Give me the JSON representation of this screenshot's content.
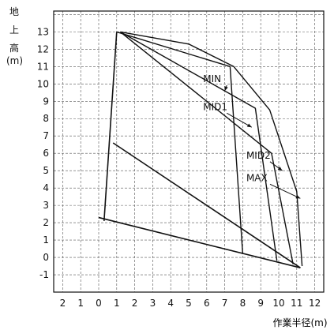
{
  "chart_data": {
    "type": "line",
    "title": "",
    "ylabel_chars": [
      "地",
      "上",
      "高",
      "(m)"
    ],
    "xlabel": "作業半径(m)",
    "x_ticks": [
      {
        "label": "2",
        "value": -2
      },
      {
        "label": "1",
        "value": -1
      },
      {
        "label": "0",
        "value": 0
      },
      {
        "label": "1",
        "value": 1
      },
      {
        "label": "2",
        "value": 2
      },
      {
        "label": "3",
        "value": 3
      },
      {
        "label": "4",
        "value": 4
      },
      {
        "label": "5",
        "value": 5
      },
      {
        "label": "6",
        "value": 6
      },
      {
        "label": "7",
        "value": 7
      },
      {
        "label": "8",
        "value": 8
      },
      {
        "label": "9",
        "value": 9
      },
      {
        "label": "10",
        "value": 10
      },
      {
        "label": "11",
        "value": 11
      },
      {
        "label": "12",
        "value": 12
      }
    ],
    "y_ticks": [
      13,
      12,
      11,
      10,
      9,
      8,
      7,
      6,
      5,
      4,
      3,
      2,
      1,
      0,
      -1
    ],
    "xlim": [
      -2.5,
      12.5
    ],
    "ylim": [
      -2,
      14.2
    ],
    "grid": true,
    "series": [
      {
        "name": "MIN",
        "x": [
          1.0,
          7.3,
          8.0
        ],
        "y": [
          13.0,
          11.0,
          0.2
        ]
      },
      {
        "name": "MID1",
        "x": [
          1.2,
          8.7,
          9.9
        ],
        "y": [
          13.0,
          8.6,
          -0.2
        ]
      },
      {
        "name": "MID2",
        "x": [
          1.2,
          9.6,
          10.8
        ],
        "y": [
          13.0,
          6.0,
          -0.4
        ]
      },
      {
        "name": "MAX",
        "x": [
          1.2,
          5.0,
          7.5,
          9.5,
          11.0,
          11.3
        ],
        "y": [
          13.0,
          12.3,
          11.0,
          8.5,
          3.8,
          -0.5
        ]
      }
    ],
    "envelope_lines": [
      {
        "x": [
          0.3,
          1.0
        ],
        "y": [
          2.1,
          13.0
        ]
      },
      {
        "x": [
          0.8,
          11.2
        ],
        "y": [
          6.6,
          -0.6
        ]
      },
      {
        "x": [
          0.0,
          11.2
        ],
        "y": [
          2.3,
          -0.6
        ]
      }
    ],
    "annotations": [
      {
        "text": "MIN",
        "x": 5.8,
        "y": 10.1,
        "arrow_to": [
          7.0,
          9.6
        ]
      },
      {
        "text": "MID1",
        "x": 5.8,
        "y": 8.5,
        "arrow_to": [
          8.5,
          7.5
        ]
      },
      {
        "text": "MID2",
        "x": 8.2,
        "y": 5.7,
        "arrow_to": [
          10.2,
          5.0
        ]
      },
      {
        "text": "MAX",
        "x": 8.2,
        "y": 4.4,
        "arrow_to": [
          11.2,
          3.4
        ]
      }
    ]
  }
}
